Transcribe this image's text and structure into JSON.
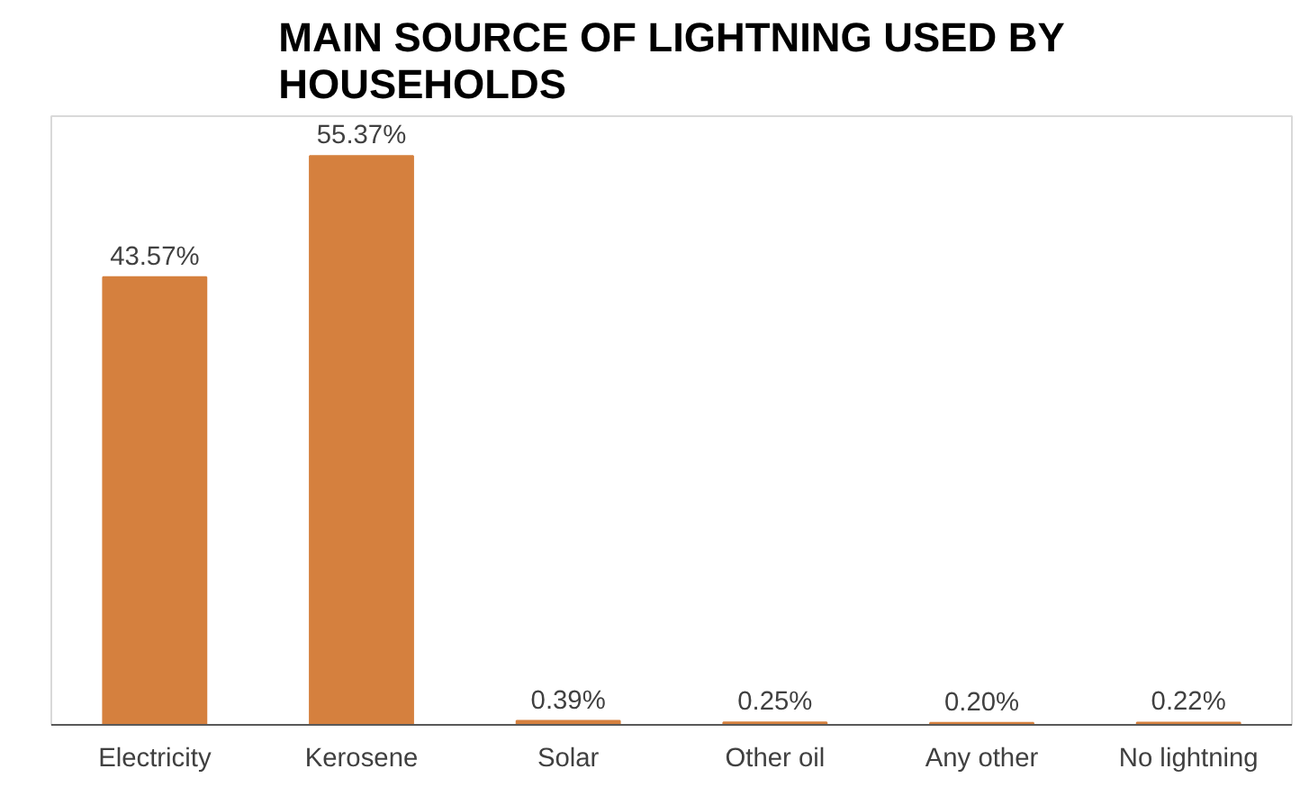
{
  "chart_data": {
    "type": "bar",
    "title": "MAIN SOURCE OF LIGHTNING USED BY HOUSEHOLDS",
    "categories": [
      "Electricity",
      "Kerosene",
      "Solar",
      "Other oil",
      "Any other",
      "No lightning"
    ],
    "values": [
      43.57,
      55.37,
      0.39,
      0.25,
      0.2,
      0.22
    ],
    "value_labels": [
      "43.57%",
      "55.37%",
      "0.39%",
      "0.25%",
      "0.20%",
      "0.22%"
    ],
    "color": "#d5803e"
  }
}
